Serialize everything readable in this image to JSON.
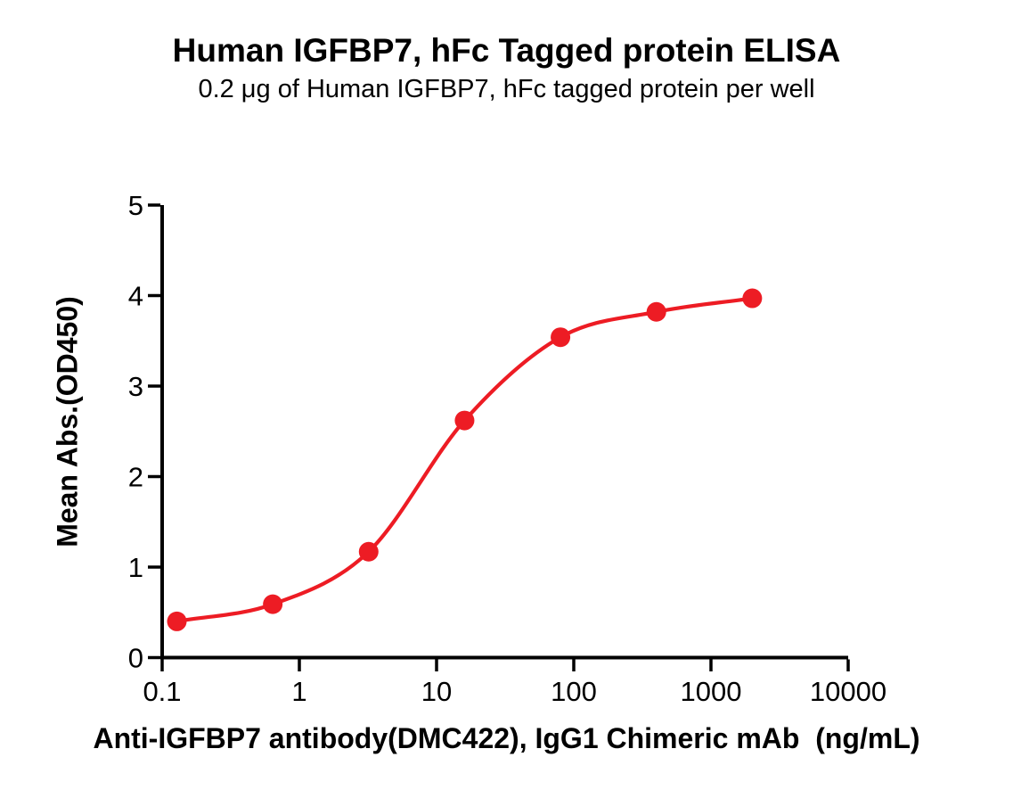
{
  "chart": {
    "title": "Human IGFBP7, hFc Tagged protein ELISA",
    "subtitle": "0.2 μg of Human IGFBP7, hFc tagged protein per well",
    "xlabel": "Anti-IGFBP7 antibody(DMC422), IgG1 Chimeric mAb  (ng/mL)",
    "ylabel": "Mean Abs.(OD450)"
  },
  "chart_data": {
    "type": "scatter",
    "curve": "smooth sigmoidal line through points",
    "title": "Human IGFBP7, hFc Tagged protein ELISA",
    "subtitle": "0.2 μg of Human IGFBP7, hFc tagged protein per well",
    "xlabel": "Anti-IGFBP7 antibody(DMC422), IgG1 Chimeric mAb  (ng/mL)",
    "ylabel": "Mean Abs.(OD450)",
    "x_scale": "log10",
    "x": [
      0.128,
      0.64,
      3.2,
      16,
      80,
      400,
      2000
    ],
    "y": [
      0.4,
      0.59,
      1.17,
      2.62,
      3.54,
      3.82,
      3.97
    ],
    "x_ticks": [
      0.1,
      1,
      10,
      100,
      1000,
      10000
    ],
    "x_tick_labels": [
      "0.1",
      "1",
      "10",
      "100",
      "1000",
      "10000"
    ],
    "y_ticks": [
      0,
      1,
      2,
      3,
      4,
      5
    ],
    "y_tick_labels": [
      "0",
      "1",
      "2",
      "3",
      "4",
      "5"
    ],
    "xlim": [
      0.1,
      10000
    ],
    "ylim": [
      0,
      5
    ],
    "grid": false,
    "legend": false,
    "marker_color": "#ED1C24",
    "line_color": "#ED1C24",
    "axis_color": "#000000",
    "text_color": "#000000",
    "background_color": "#FFFFFF"
  }
}
